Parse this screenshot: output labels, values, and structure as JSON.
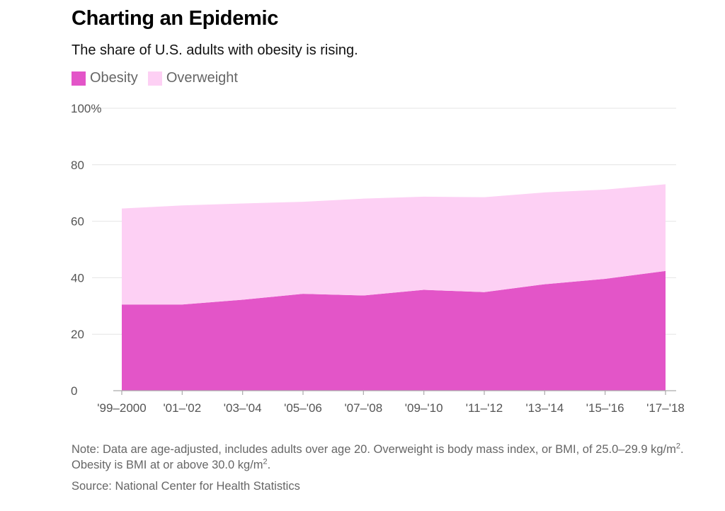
{
  "title": "Charting an Epidemic",
  "subtitle": "The share of U.S. adults with obesity is rising.",
  "legend": [
    {
      "label": "Obesity",
      "color": "#e355c8"
    },
    {
      "label": "Overweight",
      "color": "#fdd0f4"
    }
  ],
  "note": {
    "part1": "Note: Data are age-adjusted, includes adults over age 20. Overweight is body mass index, or BMI, of 25.0–29.9 kg/m",
    "sup1": "2",
    "part2": ". Obesity is BMI at or above 30.0 kg/m",
    "sup2": "2",
    "part3": "."
  },
  "source": "Source: National Center for Health Statistics",
  "chart_data": {
    "type": "area",
    "stacked": true,
    "title": "Charting an Epidemic",
    "subtitle": "The share of U.S. adults with obesity is rising.",
    "categories": [
      "'99–2000",
      "'01–'02",
      "'03–'04",
      "'05–'06",
      "'07–'08",
      "'09–'10",
      "'11–'12",
      "'13–'14",
      "'15–'16",
      "'17–'18"
    ],
    "series": [
      {
        "name": "Obesity",
        "color": "#e355c8",
        "values": [
          30.5,
          30.5,
          32.2,
          34.3,
          33.7,
          35.7,
          34.9,
          37.7,
          39.6,
          42.4
        ]
      },
      {
        "name": "Overweight",
        "color": "#fdd0f4",
        "values": [
          34.0,
          35.1,
          34.1,
          32.6,
          34.3,
          33.0,
          33.6,
          32.5,
          31.6,
          30.7
        ]
      }
    ],
    "ytick_labels": [
      "0",
      "20",
      "40",
      "60",
      "80",
      "100%"
    ],
    "ylim": [
      0,
      100
    ],
    "grid": true,
    "legend_position": "top-left",
    "xlabel": "",
    "ylabel": ""
  }
}
